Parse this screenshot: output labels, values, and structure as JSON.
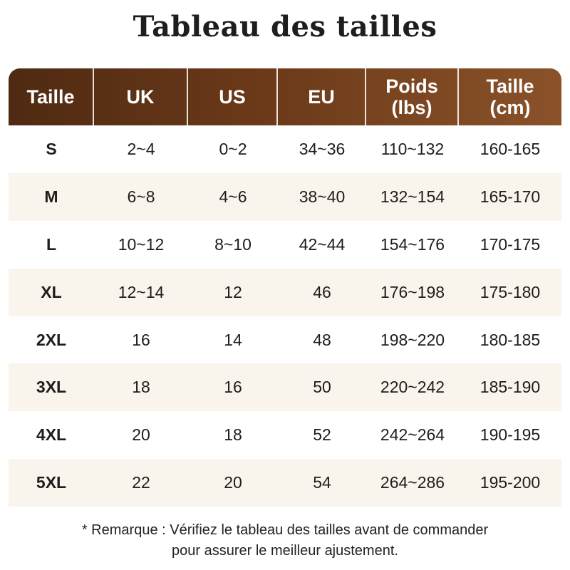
{
  "title": "Tableau des tailles",
  "headers": [
    "Taille",
    "UK",
    "US",
    "EU",
    "Poids\n(lbs)",
    "Taille\n(cm)"
  ],
  "rows": [
    [
      "S",
      "2~4",
      "0~2",
      "34~36",
      "110~132",
      "160-165"
    ],
    [
      "M",
      "6~8",
      "4~6",
      "38~40",
      "132~154",
      "165-170"
    ],
    [
      "L",
      "10~12",
      "8~10",
      "42~44",
      "154~176",
      "170-175"
    ],
    [
      "XL",
      "12~14",
      "12",
      "46",
      "176~198",
      "175-180"
    ],
    [
      "2XL",
      "16",
      "14",
      "48",
      "198~220",
      "180-185"
    ],
    [
      "3XL",
      "18",
      "16",
      "50",
      "220~242",
      "185-190"
    ],
    [
      "4XL",
      "20",
      "18",
      "52",
      "242~264",
      "190-195"
    ],
    [
      "5XL",
      "22",
      "20",
      "54",
      "264~286",
      "195-200"
    ]
  ],
  "note": {
    "line1": "* Remarque : Vérifiez le tableau des tailles avant de commander",
    "line2": "pour assurer le meilleur ajustement."
  },
  "colors": {
    "header_dark": "#4f2a12",
    "header_light": "#8a5229",
    "row_alt": "#faf5ec"
  }
}
